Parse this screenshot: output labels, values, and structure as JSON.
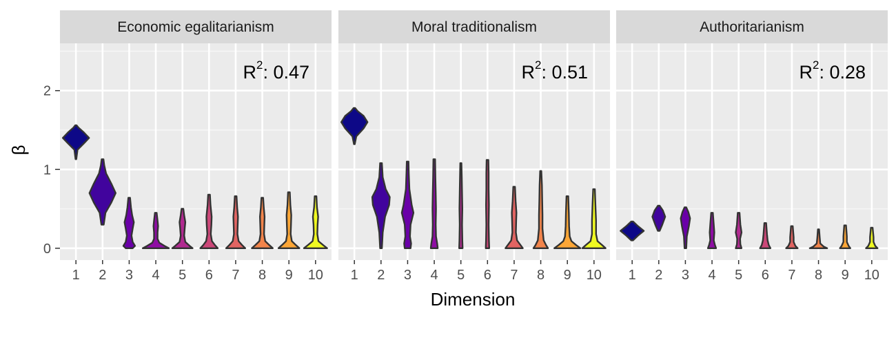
{
  "chart_data": {
    "type": "violin",
    "xlabel": "Dimension",
    "ylabel": "β",
    "ylim": [
      -0.15,
      2.6
    ],
    "y_ticks": [
      0,
      1,
      2
    ],
    "categories": [
      "1",
      "2",
      "3",
      "4",
      "5",
      "6",
      "7",
      "8",
      "9",
      "10"
    ],
    "r2_prefix": "R",
    "r2_exponent": "2",
    "palette": [
      "#0d0887",
      "#41049d",
      "#6a00a8",
      "#8f0da4",
      "#b12a90",
      "#cc4778",
      "#e16462",
      "#f2844b",
      "#fca636",
      "#f0f921"
    ],
    "grid": true,
    "legend": "none",
    "panels": [
      {
        "title": "Economic egalitarianism",
        "r2_value": ": 0.47",
        "violins": [
          {
            "min": 1.13,
            "max": 1.56,
            "kde": [
              [
                1.13,
                0.03
              ],
              [
                1.25,
                0.12
              ],
              [
                1.33,
                0.6
              ],
              [
                1.4,
                1.0
              ],
              [
                1.47,
                0.6
              ],
              [
                1.53,
                0.2
              ],
              [
                1.56,
                0.05
              ]
            ]
          },
          {
            "min": 0.3,
            "max": 1.13,
            "kde": [
              [
                0.3,
                0.04
              ],
              [
                0.45,
                0.1
              ],
              [
                0.58,
                0.3
              ],
              [
                0.7,
                0.45
              ],
              [
                0.82,
                0.3
              ],
              [
                0.95,
                0.12
              ],
              [
                1.05,
                0.06
              ],
              [
                1.13,
                0.03
              ]
            ]
          },
          {
            "min": 0.0,
            "max": 0.64,
            "kde": [
              [
                0.0,
                0.12
              ],
              [
                0.03,
                0.2
              ],
              [
                0.08,
                0.12
              ],
              [
                0.16,
                0.08
              ],
              [
                0.25,
                0.12
              ],
              [
                0.33,
                0.16
              ],
              [
                0.42,
                0.1
              ],
              [
                0.52,
                0.06
              ],
              [
                0.64,
                0.03
              ]
            ]
          },
          {
            "min": 0.0,
            "max": 0.45,
            "kde": [
              [
                0.0,
                0.45
              ],
              [
                0.03,
                0.3
              ],
              [
                0.07,
                0.12
              ],
              [
                0.12,
                0.06
              ],
              [
                0.2,
                0.06
              ],
              [
                0.28,
                0.08
              ],
              [
                0.35,
                0.06
              ],
              [
                0.45,
                0.03
              ]
            ]
          },
          {
            "min": 0.0,
            "max": 0.5,
            "kde": [
              [
                0.0,
                0.35
              ],
              [
                0.03,
                0.25
              ],
              [
                0.08,
                0.1
              ],
              [
                0.16,
                0.06
              ],
              [
                0.26,
                0.08
              ],
              [
                0.33,
                0.1
              ],
              [
                0.42,
                0.06
              ],
              [
                0.5,
                0.03
              ]
            ]
          },
          {
            "min": 0.0,
            "max": 0.68,
            "kde": [
              [
                0.0,
                0.3
              ],
              [
                0.04,
                0.2
              ],
              [
                0.09,
                0.1
              ],
              [
                0.18,
                0.06
              ],
              [
                0.3,
                0.08
              ],
              [
                0.4,
                0.09
              ],
              [
                0.55,
                0.05
              ],
              [
                0.68,
                0.03
              ]
            ]
          },
          {
            "min": 0.0,
            "max": 0.66,
            "kde": [
              [
                0.0,
                0.33
              ],
              [
                0.04,
                0.22
              ],
              [
                0.09,
                0.1
              ],
              [
                0.18,
                0.06
              ],
              [
                0.3,
                0.07
              ],
              [
                0.4,
                0.08
              ],
              [
                0.52,
                0.05
              ],
              [
                0.66,
                0.03
              ]
            ]
          },
          {
            "min": 0.0,
            "max": 0.64,
            "kde": [
              [
                0.0,
                0.36
              ],
              [
                0.04,
                0.24
              ],
              [
                0.09,
                0.1
              ],
              [
                0.18,
                0.06
              ],
              [
                0.3,
                0.07
              ],
              [
                0.4,
                0.08
              ],
              [
                0.52,
                0.05
              ],
              [
                0.64,
                0.03
              ]
            ]
          },
          {
            "min": 0.0,
            "max": 0.71,
            "kde": [
              [
                0.0,
                0.36
              ],
              [
                0.04,
                0.24
              ],
              [
                0.09,
                0.1
              ],
              [
                0.18,
                0.06
              ],
              [
                0.3,
                0.07
              ],
              [
                0.42,
                0.08
              ],
              [
                0.55,
                0.05
              ],
              [
                0.71,
                0.03
              ]
            ]
          },
          {
            "min": 0.0,
            "max": 0.66,
            "kde": [
              [
                0.0,
                0.4
              ],
              [
                0.04,
                0.26
              ],
              [
                0.09,
                0.1
              ],
              [
                0.18,
                0.06
              ],
              [
                0.3,
                0.07
              ],
              [
                0.4,
                0.09
              ],
              [
                0.52,
                0.05
              ],
              [
                0.66,
                0.03
              ]
            ]
          }
        ]
      },
      {
        "title": "Moral traditionalism",
        "r2_value": ": 0.51",
        "violins": [
          {
            "min": 1.32,
            "max": 1.78,
            "kde": [
              [
                1.32,
                0.03
              ],
              [
                1.42,
                0.15
              ],
              [
                1.52,
                0.7
              ],
              [
                1.6,
                1.0
              ],
              [
                1.68,
                0.7
              ],
              [
                1.74,
                0.25
              ],
              [
                1.78,
                0.05
              ]
            ]
          },
          {
            "min": 0.0,
            "max": 1.08,
            "kde": [
              [
                0.0,
                0.03
              ],
              [
                0.2,
                0.06
              ],
              [
                0.4,
                0.14
              ],
              [
                0.55,
                0.28
              ],
              [
                0.65,
                0.3
              ],
              [
                0.75,
                0.16
              ],
              [
                0.9,
                0.06
              ],
              [
                1.08,
                0.03
              ]
            ]
          },
          {
            "min": 0.0,
            "max": 1.1,
            "kde": [
              [
                0.0,
                0.1
              ],
              [
                0.06,
                0.12
              ],
              [
                0.15,
                0.08
              ],
              [
                0.3,
                0.1
              ],
              [
                0.45,
                0.2
              ],
              [
                0.55,
                0.14
              ],
              [
                0.75,
                0.06
              ],
              [
                0.95,
                0.04
              ],
              [
                1.1,
                0.03
              ]
            ]
          },
          {
            "min": 0.0,
            "max": 1.13,
            "kde": [
              [
                0.0,
                0.12
              ],
              [
                0.06,
                0.1
              ],
              [
                0.15,
                0.06
              ],
              [
                0.3,
                0.05
              ],
              [
                0.5,
                0.06
              ],
              [
                0.7,
                0.05
              ],
              [
                0.9,
                0.04
              ],
              [
                1.13,
                0.03
              ]
            ]
          },
          {
            "min": 0.0,
            "max": 1.08,
            "kde": [
              [
                0.0,
                0.06
              ],
              [
                0.1,
                0.05
              ],
              [
                0.3,
                0.04
              ],
              [
                0.5,
                0.05
              ],
              [
                0.7,
                0.04
              ],
              [
                0.9,
                0.03
              ],
              [
                1.08,
                0.02
              ]
            ]
          },
          {
            "min": 0.0,
            "max": 1.12,
            "kde": [
              [
                0.0,
                0.06
              ],
              [
                0.1,
                0.05
              ],
              [
                0.3,
                0.04
              ],
              [
                0.55,
                0.05
              ],
              [
                0.75,
                0.04
              ],
              [
                0.95,
                0.04
              ],
              [
                1.12,
                0.03
              ]
            ]
          },
          {
            "min": 0.0,
            "max": 0.78,
            "kde": [
              [
                0.0,
                0.3
              ],
              [
                0.04,
                0.22
              ],
              [
                0.1,
                0.1
              ],
              [
                0.2,
                0.06
              ],
              [
                0.35,
                0.07
              ],
              [
                0.45,
                0.08
              ],
              [
                0.6,
                0.05
              ],
              [
                0.78,
                0.03
              ]
            ]
          },
          {
            "min": 0.0,
            "max": 0.98,
            "kde": [
              [
                0.0,
                0.25
              ],
              [
                0.04,
                0.18
              ],
              [
                0.1,
                0.1
              ],
              [
                0.25,
                0.06
              ],
              [
                0.42,
                0.06
              ],
              [
                0.6,
                0.05
              ],
              [
                0.8,
                0.04
              ],
              [
                0.98,
                0.02
              ]
            ]
          },
          {
            "min": 0.0,
            "max": 0.66,
            "kde": [
              [
                0.0,
                0.45
              ],
              [
                0.04,
                0.3
              ],
              [
                0.09,
                0.14
              ],
              [
                0.15,
                0.08
              ],
              [
                0.28,
                0.06
              ],
              [
                0.45,
                0.05
              ],
              [
                0.66,
                0.03
              ]
            ]
          },
          {
            "min": 0.0,
            "max": 0.75,
            "kde": [
              [
                0.0,
                0.4
              ],
              [
                0.04,
                0.28
              ],
              [
                0.09,
                0.12
              ],
              [
                0.18,
                0.07
              ],
              [
                0.35,
                0.07
              ],
              [
                0.55,
                0.05
              ],
              [
                0.75,
                0.03
              ]
            ]
          }
        ]
      },
      {
        "title": "Authoritarianism",
        "r2_value": ": 0.28",
        "violins": [
          {
            "min": 0.1,
            "max": 0.34,
            "kde": [
              [
                0.1,
                0.03
              ],
              [
                0.16,
                0.2
              ],
              [
                0.22,
                0.4
              ],
              [
                0.28,
                0.2
              ],
              [
                0.34,
                0.03
              ]
            ]
          },
          {
            "min": 0.22,
            "max": 0.54,
            "kde": [
              [
                0.22,
                0.03
              ],
              [
                0.3,
                0.12
              ],
              [
                0.4,
                0.22
              ],
              [
                0.48,
                0.14
              ],
              [
                0.54,
                0.03
              ]
            ]
          },
          {
            "min": 0.0,
            "max": 0.52,
            "kde": [
              [
                0.0,
                0.03
              ],
              [
                0.15,
                0.05
              ],
              [
                0.28,
                0.12
              ],
              [
                0.38,
                0.16
              ],
              [
                0.46,
                0.1
              ],
              [
                0.52,
                0.03
              ]
            ]
          },
          {
            "min": 0.0,
            "max": 0.45,
            "kde": [
              [
                0.0,
                0.14
              ],
              [
                0.04,
                0.1
              ],
              [
                0.1,
                0.06
              ],
              [
                0.2,
                0.08
              ],
              [
                0.3,
                0.06
              ],
              [
                0.45,
                0.03
              ]
            ]
          },
          {
            "min": 0.0,
            "max": 0.45,
            "kde": [
              [
                0.0,
                0.1
              ],
              [
                0.05,
                0.06
              ],
              [
                0.12,
                0.05
              ],
              [
                0.2,
                0.1
              ],
              [
                0.3,
                0.06
              ],
              [
                0.45,
                0.03
              ]
            ]
          },
          {
            "min": 0.0,
            "max": 0.32,
            "kde": [
              [
                0.0,
                0.18
              ],
              [
                0.04,
                0.12
              ],
              [
                0.1,
                0.08
              ],
              [
                0.18,
                0.06
              ],
              [
                0.32,
                0.03
              ]
            ]
          },
          {
            "min": 0.0,
            "max": 0.28,
            "kde": [
              [
                0.0,
                0.2
              ],
              [
                0.03,
                0.12
              ],
              [
                0.08,
                0.06
              ],
              [
                0.14,
                0.06
              ],
              [
                0.28,
                0.03
              ]
            ]
          },
          {
            "min": 0.0,
            "max": 0.24,
            "kde": [
              [
                0.0,
                0.3
              ],
              [
                0.02,
                0.18
              ],
              [
                0.06,
                0.06
              ],
              [
                0.14,
                0.04
              ],
              [
                0.24,
                0.02
              ]
            ]
          },
          {
            "min": 0.0,
            "max": 0.29,
            "kde": [
              [
                0.0,
                0.18
              ],
              [
                0.03,
                0.12
              ],
              [
                0.08,
                0.06
              ],
              [
                0.15,
                0.06
              ],
              [
                0.29,
                0.03
              ]
            ]
          },
          {
            "min": 0.0,
            "max": 0.26,
            "kde": [
              [
                0.0,
                0.2
              ],
              [
                0.03,
                0.12
              ],
              [
                0.08,
                0.06
              ],
              [
                0.14,
                0.06
              ],
              [
                0.26,
                0.03
              ]
            ]
          }
        ]
      }
    ]
  }
}
